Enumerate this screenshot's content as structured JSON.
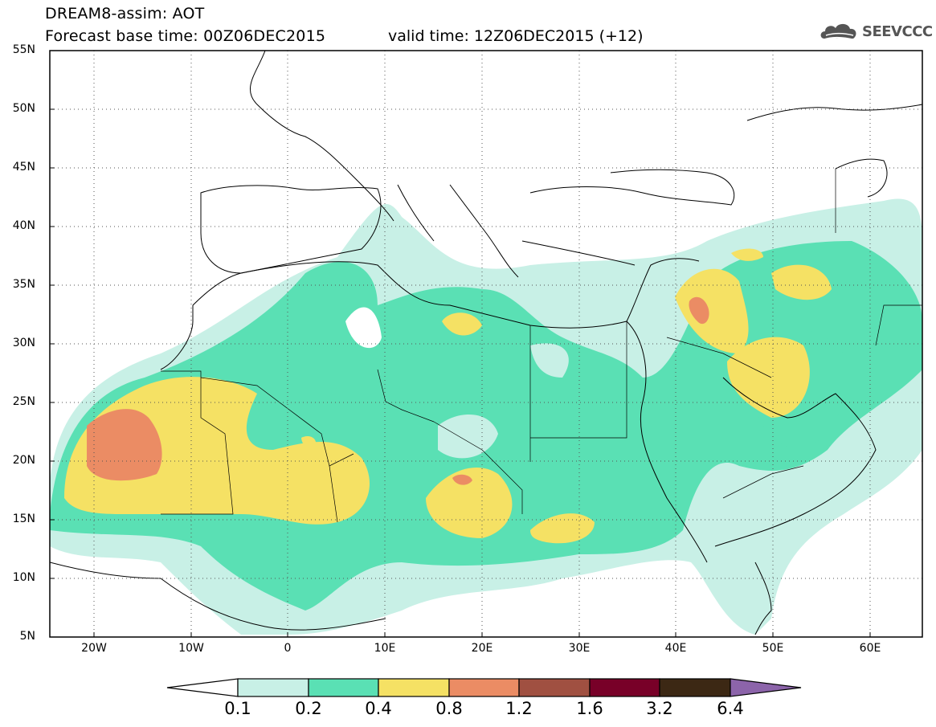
{
  "header": {
    "title_line1": "DREAM8-assim: AOT",
    "title_line2": "Forecast base time: 00Z06DEC2015",
    "valid_time": "valid time: 12Z06DEC2015 (+12)",
    "logo_text": "SEEVCCC",
    "logo_icon": "cloud-icon"
  },
  "map": {
    "lat_labels": [
      "55N",
      "50N",
      "45N",
      "40N",
      "35N",
      "30N",
      "25N",
      "20N",
      "15N",
      "10N",
      "5N"
    ],
    "lon_labels": [
      "20W",
      "10W",
      "0",
      "10E",
      "20E",
      "30E",
      "40E",
      "50E",
      "60E"
    ],
    "extent": {
      "lon_min": -25,
      "lon_max": 65,
      "lat_min": 5,
      "lat_max": 55
    }
  },
  "colorbar": {
    "labels": [
      "0.1",
      "0.2",
      "0.4",
      "0.8",
      "1.2",
      "1.6",
      "3.2",
      "6.4"
    ],
    "colors": [
      "#c8f0e6",
      "#5ae0b4",
      "#f5e164",
      "#eb8c64",
      "#a05041",
      "#780028",
      "#3c2814",
      "#8c64aa"
    ]
  }
}
